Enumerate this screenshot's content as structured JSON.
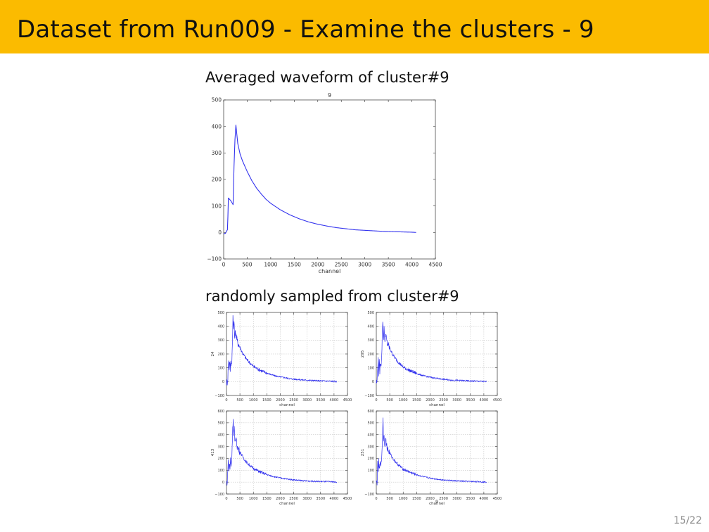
{
  "slide": {
    "title": "Dataset from Run009 - Examine the clusters - 9",
    "page_number": "15/22"
  },
  "sections": {
    "averaged_heading": "Averaged waveform of cluster#9",
    "sampled_heading": "randomly sampled from cluster#9"
  },
  "colors": {
    "header_bg": "#fbbb00",
    "series": "#3333ee"
  },
  "chart_data": [
    {
      "id": "avg",
      "type": "line",
      "title": "9",
      "xlabel": "channel",
      "ylabel": "",
      "xlim": [
        0,
        4500
      ],
      "ylim": [
        -100,
        500
      ],
      "xticks": [
        0,
        500,
        1000,
        1500,
        2000,
        2500,
        3000,
        3500,
        4000,
        4500
      ],
      "yticks": [
        -100,
        0,
        100,
        200,
        300,
        400,
        500
      ],
      "xtick_labels": [
        "0",
        "500",
        "1000",
        "1500",
        "2000",
        "2500",
        "3000",
        "3500",
        "4000",
        "4500"
      ],
      "ytick_labels": [
        "−100",
        "0",
        "100",
        "200",
        "300",
        "400",
        "500"
      ],
      "grid": false,
      "noise": 0,
      "series": [
        {
          "x": [
            0,
            40,
            60,
            80,
            90,
            100,
            150,
            200,
            220,
            240,
            260,
            280,
            300,
            350,
            400,
            500,
            600,
            700,
            800,
            900,
            1000,
            1200,
            1400,
            1600,
            1800,
            2000,
            2200,
            2400,
            2600,
            2800,
            3000,
            3200,
            3400,
            3600,
            3800,
            4000,
            4090
          ],
          "y": [
            -5,
            -3,
            5,
            10,
            60,
            130,
            120,
            105,
            250,
            350,
            405,
            370,
            335,
            295,
            270,
            230,
            195,
            167,
            145,
            125,
            110,
            86,
            67,
            52,
            40,
            31,
            24,
            18,
            14,
            10,
            8,
            6,
            4,
            3,
            2,
            1,
            0
          ]
        }
      ]
    },
    {
      "id": "s1",
      "type": "line",
      "title": "",
      "xlabel": "channel",
      "ylabel": "24",
      "xlim": [
        0,
        4500
      ],
      "ylim": [
        -100,
        500
      ],
      "xticks": [
        0,
        500,
        1000,
        1500,
        2000,
        2500,
        3000,
        3500,
        4000,
        4500
      ],
      "yticks": [
        -100,
        0,
        100,
        200,
        300,
        400,
        500
      ],
      "xtick_labels": [
        "0",
        "500",
        "1000",
        "1500",
        "2000",
        "2500",
        "3000",
        "3500",
        "4000",
        "4500"
      ],
      "ytick_labels": [
        "−100",
        "0",
        "100",
        "200",
        "300",
        "400",
        "500"
      ],
      "grid": true,
      "noise": 1,
      "series": [
        {
          "x": [
            0,
            30,
            50,
            60,
            80,
            100,
            120,
            140,
            160,
            180,
            200,
            220,
            240,
            260,
            280,
            300,
            340,
            400,
            500,
            600,
            700,
            800,
            900,
            1000,
            1200,
            1400,
            1600,
            1800,
            2000,
            2200,
            2400,
            2600,
            2800,
            3000,
            3200,
            3400,
            3600,
            3800,
            4000,
            4100
          ],
          "y": [
            -5,
            0,
            30,
            90,
            150,
            100,
            160,
            90,
            130,
            120,
            160,
            280,
            470,
            380,
            440,
            330,
            360,
            290,
            250,
            205,
            175,
            150,
            130,
            110,
            88,
            70,
            55,
            42,
            34,
            28,
            20,
            17,
            13,
            10,
            8,
            6,
            5,
            4,
            2,
            0
          ]
        }
      ]
    },
    {
      "id": "s2",
      "type": "line",
      "title": "",
      "xlabel": "channel",
      "ylabel": "295",
      "xlim": [
        0,
        4500
      ],
      "ylim": [
        -100,
        500
      ],
      "xticks": [
        0,
        500,
        1000,
        1500,
        2000,
        2500,
        3000,
        3500,
        4000,
        4500
      ],
      "yticks": [
        -100,
        0,
        100,
        200,
        300,
        400,
        500
      ],
      "xtick_labels": [
        "0",
        "500",
        "1000",
        "1500",
        "2000",
        "2500",
        "3000",
        "3500",
        "4000",
        "4500"
      ],
      "ytick_labels": [
        "−100",
        "0",
        "100",
        "200",
        "300",
        "400",
        "500"
      ],
      "grid": true,
      "noise": 1,
      "series": [
        {
          "x": [
            0,
            30,
            50,
            70,
            90,
            110,
            130,
            150,
            170,
            190,
            210,
            230,
            250,
            270,
            290,
            310,
            340,
            400,
            500,
            600,
            700,
            800,
            900,
            1000,
            1200,
            1400,
            1600,
            1800,
            2000,
            2200,
            2400,
            2600,
            2800,
            3000,
            3200,
            3400,
            3600,
            3800,
            4000,
            4100
          ],
          "y": [
            -5,
            0,
            120,
            150,
            60,
            140,
            80,
            130,
            110,
            160,
            250,
            400,
            420,
            300,
            410,
            280,
            350,
            280,
            240,
            200,
            170,
            145,
            125,
            105,
            84,
            67,
            52,
            40,
            32,
            25,
            19,
            15,
            11,
            9,
            7,
            5,
            4,
            3,
            1,
            0
          ]
        }
      ]
    },
    {
      "id": "s3",
      "type": "line",
      "title": "",
      "xlabel": "channel",
      "ylabel": "413",
      "xlim": [
        0,
        4500
      ],
      "ylim": [
        -100,
        600
      ],
      "xticks": [
        0,
        500,
        1000,
        1500,
        2000,
        2500,
        3000,
        3500,
        4000,
        4500
      ],
      "yticks": [
        -100,
        0,
        100,
        200,
        300,
        400,
        500,
        600
      ],
      "xtick_labels": [
        "0",
        "500",
        "1000",
        "1500",
        "2000",
        "2500",
        "3000",
        "3500",
        "4000",
        "4500"
      ],
      "ytick_labels": [
        "−100",
        "0",
        "100",
        "200",
        "300",
        "400",
        "500",
        "600"
      ],
      "grid": true,
      "noise": 1,
      "series": [
        {
          "x": [
            0,
            30,
            50,
            70,
            90,
            110,
            130,
            150,
            170,
            190,
            210,
            230,
            250,
            270,
            290,
            310,
            340,
            400,
            500,
            600,
            700,
            800,
            900,
            1000,
            1200,
            1400,
            1600,
            1800,
            2000,
            2200,
            2400,
            2600,
            2800,
            3000,
            3200,
            3400,
            3600,
            3800,
            4000,
            4100
          ],
          "y": [
            -5,
            0,
            120,
            180,
            90,
            160,
            110,
            200,
            140,
            170,
            280,
            470,
            520,
            380,
            460,
            330,
            380,
            300,
            255,
            215,
            180,
            155,
            135,
            115,
            92,
            72,
            56,
            44,
            35,
            28,
            22,
            17,
            13,
            10,
            8,
            6,
            5,
            4,
            2,
            0
          ]
        }
      ]
    },
    {
      "id": "s4",
      "type": "line",
      "title": "9",
      "xlabel": "channel",
      "ylabel": "251",
      "xlim": [
        0,
        4500
      ],
      "ylim": [
        -100,
        600
      ],
      "xticks": [
        0,
        500,
        1000,
        1500,
        2000,
        2500,
        3000,
        3500,
        4000,
        4500
      ],
      "yticks": [
        -100,
        0,
        100,
        200,
        300,
        400,
        500,
        600
      ],
      "xtick_labels": [
        "0",
        "500",
        "1000",
        "1500",
        "2000",
        "2500",
        "3000",
        "3500",
        "4000",
        "4500"
      ],
      "ytick_labels": [
        "−100",
        "0",
        "100",
        "200",
        "300",
        "400",
        "500",
        "600"
      ],
      "grid": true,
      "noise": 1,
      "series": [
        {
          "x": [
            0,
            30,
            50,
            70,
            90,
            110,
            130,
            150,
            170,
            190,
            210,
            230,
            250,
            270,
            290,
            310,
            340,
            400,
            500,
            600,
            700,
            800,
            900,
            1000,
            1200,
            1400,
            1600,
            1800,
            2000,
            2200,
            2400,
            2600,
            2800,
            3000,
            3200,
            3400,
            3600,
            3800,
            4000,
            4100
          ],
          "y": [
            -5,
            0,
            150,
            90,
            170,
            100,
            130,
            200,
            120,
            180,
            260,
            380,
            560,
            330,
            420,
            300,
            370,
            290,
            245,
            205,
            175,
            150,
            130,
            110,
            88,
            70,
            55,
            43,
            34,
            27,
            21,
            17,
            13,
            10,
            8,
            6,
            5,
            4,
            2,
            0
          ]
        }
      ]
    }
  ]
}
